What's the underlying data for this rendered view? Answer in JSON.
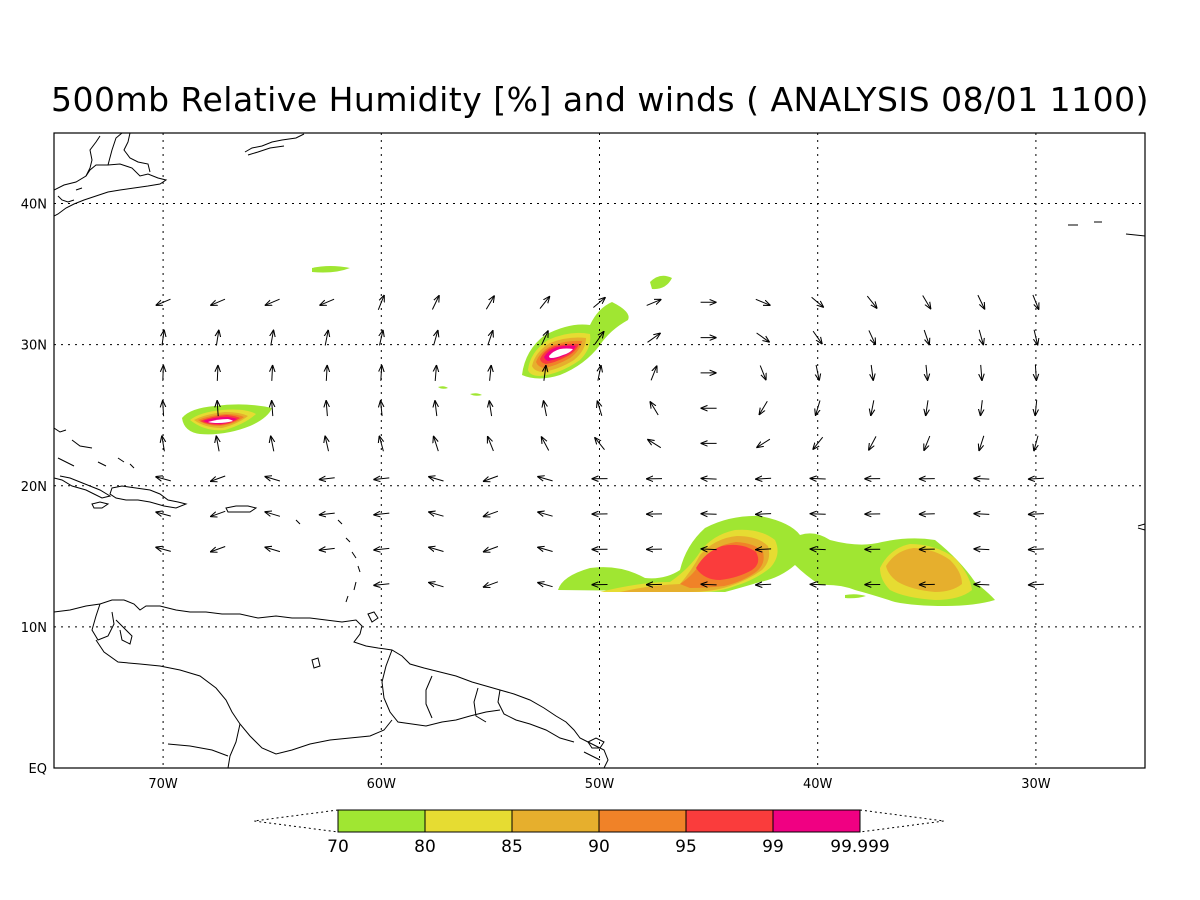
{
  "title": "500mb Relative Humidity [%] and winds ( ANALYSIS 08/01 1100)",
  "map": {
    "lon_range": [
      -75,
      -25
    ],
    "lat_range": [
      0,
      45
    ],
    "lon_ticks": [
      {
        "value": -70,
        "label": "70W"
      },
      {
        "value": -60,
        "label": "60W"
      },
      {
        "value": -50,
        "label": "50W"
      },
      {
        "value": -40,
        "label": "40W"
      },
      {
        "value": -30,
        "label": "30W"
      }
    ],
    "lat_ticks": [
      {
        "value": 0,
        "label": "EQ"
      },
      {
        "value": 10,
        "label": "10N"
      },
      {
        "value": 20,
        "label": "20N"
      },
      {
        "value": 30,
        "label": "30N"
      },
      {
        "value": 40,
        "label": "40N"
      }
    ],
    "grid": true,
    "grid_style": "dotted"
  },
  "colorbar": {
    "labels": [
      "70",
      "80",
      "85",
      "90",
      "95",
      "99",
      "99.999"
    ],
    "colors": [
      "#a0e632",
      "#e6dc32",
      "#e6af2d",
      "#f08228",
      "#fa3c3c",
      "#f00082"
    ],
    "extends": "both"
  },
  "contour_colors": {
    "70": "#a0e632",
    "80": "#e6dc32",
    "85": "#e6af2d",
    "90": "#f08228",
    "95": "#fa3c3c",
    "99": "#f00082",
    "100": "#ffffff"
  }
}
